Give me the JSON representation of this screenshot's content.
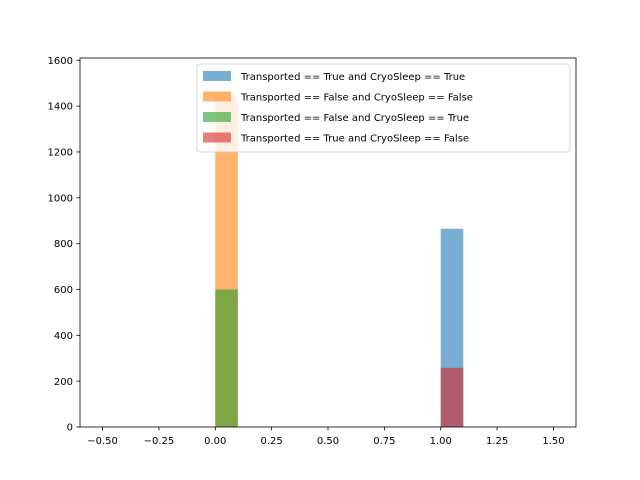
{
  "chart_data": {
    "type": "bar",
    "title": "",
    "xlabel": "",
    "ylabel": "",
    "xlim": [
      -0.6,
      1.6
    ],
    "ylim": [
      0,
      1610
    ],
    "xticks": [
      -0.5,
      -0.25,
      0.0,
      0.25,
      0.5,
      0.75,
      1.0,
      1.25,
      1.5
    ],
    "xtick_labels": [
      "−0.50",
      "−0.25",
      "0.00",
      "0.25",
      "0.50",
      "0.75",
      "1.00",
      "1.25",
      "1.50"
    ],
    "yticks": [
      0,
      200,
      400,
      600,
      800,
      1000,
      1200,
      1400,
      1600
    ],
    "ytick_labels": [
      "0",
      "200",
      "400",
      "600",
      "800",
      "1000",
      "1200",
      "1400",
      "1600"
    ],
    "grid": false,
    "legend_position": "upper right",
    "bar_width": 0.1,
    "alpha": 0.6,
    "series": [
      {
        "name": "Transported == True and CryoSleep == True",
        "color": "#1f77b4",
        "bars": [
          {
            "x": 1.0,
            "value": 865
          }
        ]
      },
      {
        "name": "Transported == False and CryoSleep == False",
        "color": "#ff7f0e",
        "bars": [
          {
            "x": 0.0,
            "value": 1440
          }
        ]
      },
      {
        "name": "Transported == False and CryoSleep == True",
        "color": "#2ca02c",
        "bars": [
          {
            "x": 0.0,
            "value": 600
          }
        ]
      },
      {
        "name": "Transported == True and CryoSleep == False",
        "color": "#d62728",
        "bars": [
          {
            "x": 1.0,
            "value": 258
          }
        ]
      }
    ]
  }
}
